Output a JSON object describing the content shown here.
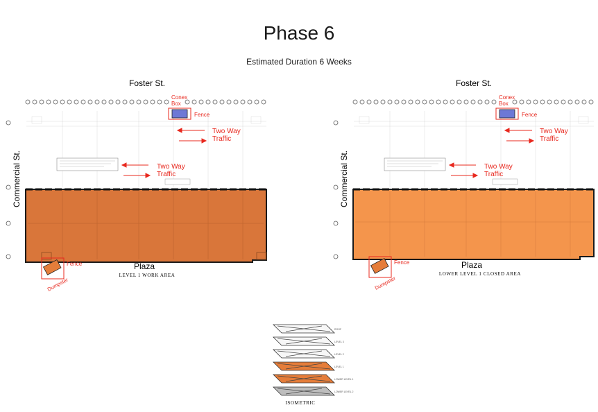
{
  "page": {
    "title": "Phase 6",
    "subtitle": "Estimated Duration 6 Weeks"
  },
  "plans": [
    {
      "street_top": "Foster St.",
      "street_side": "Commercial St.",
      "bottom_label": "Plaza",
      "caption": "LEVEL 1 WORK AREA",
      "conex_label": "Conex\nBox",
      "fence_top_label": "Fence",
      "traffic_label_1": "Two Way\nTraffic",
      "traffic_label_2": "Two Way\nTraffic",
      "fence_bottom_label": "Fence",
      "dumpster_label": "Dumpster",
      "area_color": "#d9763a"
    },
    {
      "street_top": "Foster St.",
      "street_side": "Commercial St.",
      "bottom_label": "Plaza",
      "caption": "LOWER LEVEL 1 CLOSED AREA",
      "conex_label": "Conex\nBox",
      "fence_top_label": "Fence",
      "traffic_label_1": "Two Way\nTraffic",
      "traffic_label_2": "Two Way\nTraffic",
      "fence_bottom_label": "Fence",
      "dumpster_label": "Dumpster",
      "area_color": "#f4954c"
    }
  ],
  "isometric": {
    "caption": "ISOMETRIC",
    "levels": [
      {
        "label": "ROOF",
        "highlighted": false
      },
      {
        "label": "LEVEL 3",
        "highlighted": false
      },
      {
        "label": "LEVEL 2",
        "highlighted": false
      },
      {
        "label": "LEVEL 1",
        "highlighted": true
      },
      {
        "label": "LOWER LEVEL 1",
        "highlighted": true
      },
      {
        "label": "LOWER LEVEL 2",
        "highlighted": false
      }
    ]
  },
  "colors": {
    "annotation_red": "#e8281e",
    "conex_blue": "#6d78d6",
    "highlight_orange": "#e57d3a"
  }
}
